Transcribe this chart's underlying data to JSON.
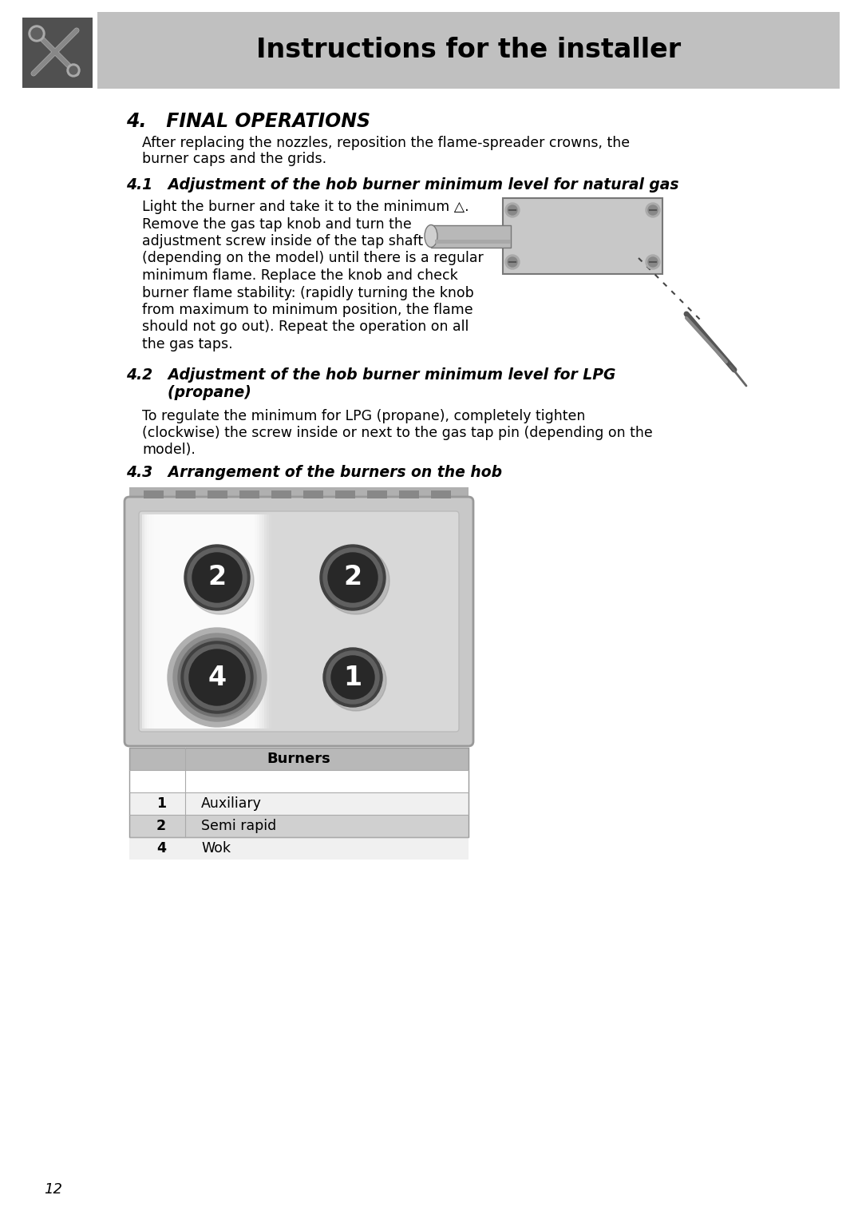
{
  "page_bg": "#ffffff",
  "header_bg": "#c0c0c0",
  "header_text": "Instructions for the installer",
  "header_icon_bg": "#505050",
  "section4_title": "4.   FINAL OPERATIONS",
  "section4_body1": "After replacing the nozzles, reposition the flame-spreader crowns, the",
  "section4_body2": "burner caps and the grids.",
  "section41_title": "4.1   Adjustment of the hob burner minimum level for natural gas",
  "section41_lines": [
    "Light the burner and take it to the minimum △.",
    "Remove the gas tap knob and turn the",
    "adjustment screw inside of the tap shaft",
    "(depending on the model) until there is a regular",
    "minimum flame. Replace the knob and check",
    "burner flame stability: (rapidly turning the knob",
    "from maximum to minimum position, the flame",
    "should not go out). Repeat the operation on all",
    "the gas taps."
  ],
  "section42_line1": "4.2   Adjustment of the hob burner minimum level for LPG",
  "section42_line2": "        (propane)",
  "section42_body": [
    "To regulate the minimum for LPG (propane), completely tighten",
    "(clockwise) the screw inside or next to the gas tap pin (depending on the",
    "model)."
  ],
  "section43_title": "4.3   Arrangement of the burners on the hob",
  "table_header": "Burners",
  "table_header_bg": "#b8b8b8",
  "table_rows": [
    {
      "num": "1",
      "label": "Auxiliary",
      "bg": "#f0f0f0"
    },
    {
      "num": "2",
      "label": "Semi rapid",
      "bg": "#d0d0d0"
    },
    {
      "num": "4",
      "label": "Wok",
      "bg": "#f0f0f0"
    }
  ],
  "page_number": "12"
}
